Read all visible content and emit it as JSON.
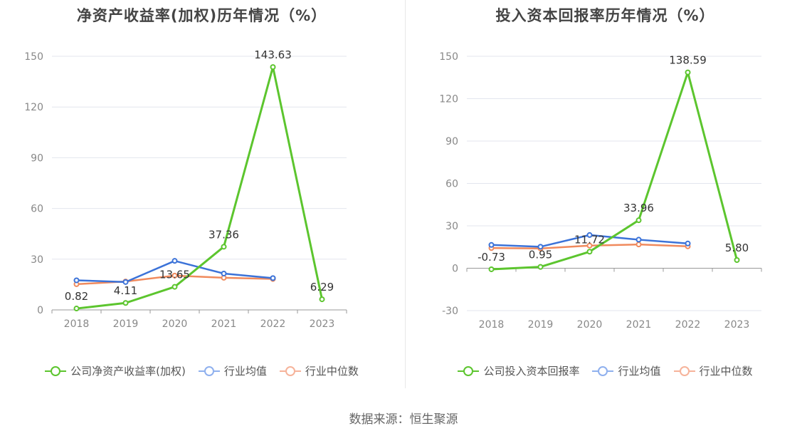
{
  "source_text": "数据来源：恒生聚源",
  "colors": {
    "company": "#5cc52e",
    "avg": "#3b72d8",
    "median": "#f08a5d",
    "grid": "#e3e6ee",
    "axis": "#999999"
  },
  "chart_data": [
    {
      "type": "line",
      "title": "净资产收益率(加权)历年情况（%）",
      "categories": [
        "2018",
        "2019",
        "2020",
        "2021",
        "2022",
        "2023"
      ],
      "ylim": [
        0,
        150
      ],
      "yticks": [
        0,
        30,
        60,
        90,
        120,
        150
      ],
      "grid": true,
      "legend_position": "bottom",
      "series": [
        {
          "name": "公司净资产收益率(加权)",
          "color": "#5cc52e",
          "values": [
            0.82,
            4.11,
            13.65,
            37.36,
            143.63,
            6.29
          ],
          "labels": [
            "0.82",
            "4.11",
            "13.65",
            "37.36",
            "143.63",
            "6.29"
          ]
        },
        {
          "name": "行业均值",
          "color": "#3b72d8",
          "values": [
            17.5,
            16.5,
            29.0,
            21.5,
            18.8,
            null
          ]
        },
        {
          "name": "行业中位数",
          "color": "#f08a5d",
          "values": [
            15.2,
            16.8,
            20.3,
            19.0,
            18.3,
            null
          ]
        }
      ]
    },
    {
      "type": "line",
      "title": "投入资本回报率历年情况（%）",
      "categories": [
        "2018",
        "2019",
        "2020",
        "2021",
        "2022",
        "2023"
      ],
      "ylim": [
        -30,
        150
      ],
      "yticks": [
        -30,
        0,
        30,
        60,
        90,
        120,
        150
      ],
      "grid": true,
      "legend_position": "bottom",
      "series": [
        {
          "name": "公司投入资本回报率",
          "color": "#5cc52e",
          "values": [
            -0.73,
            0.95,
            11.72,
            33.96,
            138.59,
            5.8
          ],
          "labels": [
            "-0.73",
            "0.95",
            "11.72",
            "33.96",
            "138.59",
            "5.80"
          ]
        },
        {
          "name": "行业均值",
          "color": "#3b72d8",
          "values": [
            16.5,
            15.2,
            23.5,
            20.2,
            17.5,
            null
          ]
        },
        {
          "name": "行业中位数",
          "color": "#f08a5d",
          "values": [
            14.3,
            14.0,
            16.0,
            16.8,
            15.5,
            null
          ]
        }
      ]
    }
  ]
}
